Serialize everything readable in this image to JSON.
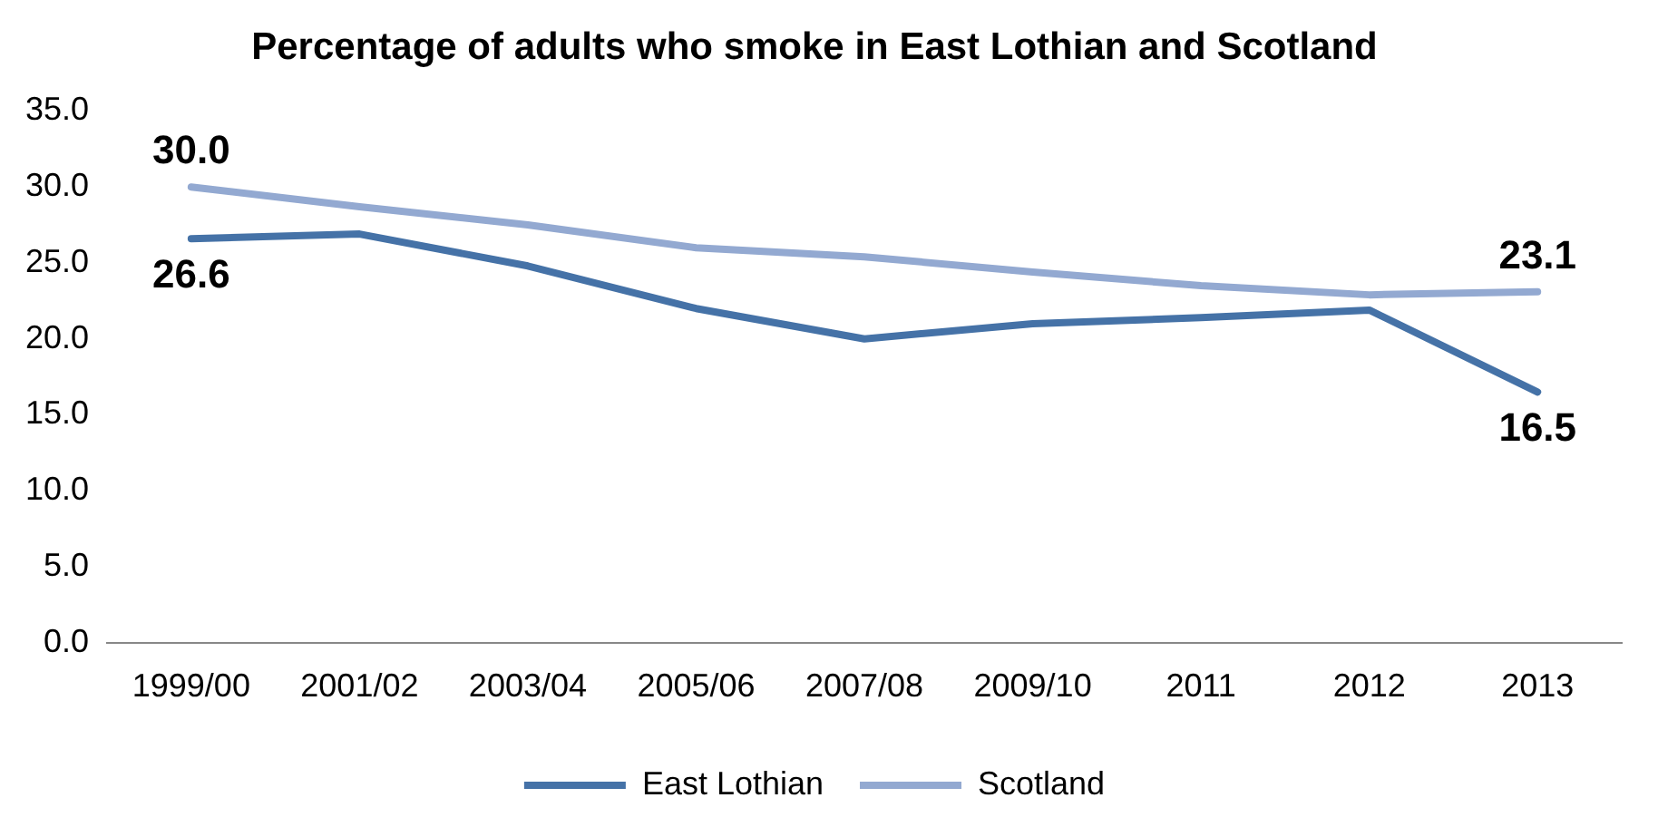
{
  "chart_data": {
    "type": "line",
    "title": "Percentage of adults who smoke in East Lothian and Scotland",
    "categories": [
      "1999/00",
      "2001/02",
      "2003/04",
      "2005/06",
      "2007/08",
      "2009/10",
      "2011",
      "2012",
      "2013"
    ],
    "series": [
      {
        "name": "East Lothian",
        "color": "#4572a7",
        "values": [
          26.6,
          26.9,
          24.8,
          22.0,
          20.0,
          21.0,
          21.4,
          21.9,
          16.5
        ],
        "value_labels": [
          "26.6",
          null,
          null,
          null,
          null,
          null,
          null,
          null,
          "16.5"
        ]
      },
      {
        "name": "Scotland",
        "color": "#93a9d1",
        "values": [
          30.0,
          28.7,
          27.5,
          26.0,
          25.4,
          24.4,
          23.5,
          22.9,
          23.1
        ],
        "value_labels": [
          "30.0",
          null,
          null,
          null,
          null,
          null,
          null,
          null,
          "23.1"
        ]
      }
    ],
    "ylim": [
      0,
      35
    ],
    "yticks": [
      {
        "value": 0,
        "label": "0.0"
      },
      {
        "value": 5,
        "label": "5.0"
      },
      {
        "value": 10,
        "label": "10.0"
      },
      {
        "value": 15,
        "label": "15.0"
      },
      {
        "value": 20,
        "label": "20.0"
      },
      {
        "value": 25,
        "label": "25.0"
      },
      {
        "value": 30,
        "label": "30.0"
      },
      {
        "value": 35,
        "label": "35.0"
      }
    ],
    "grid": false,
    "legend": "bottom",
    "marker": "none",
    "line_style": "solid"
  }
}
